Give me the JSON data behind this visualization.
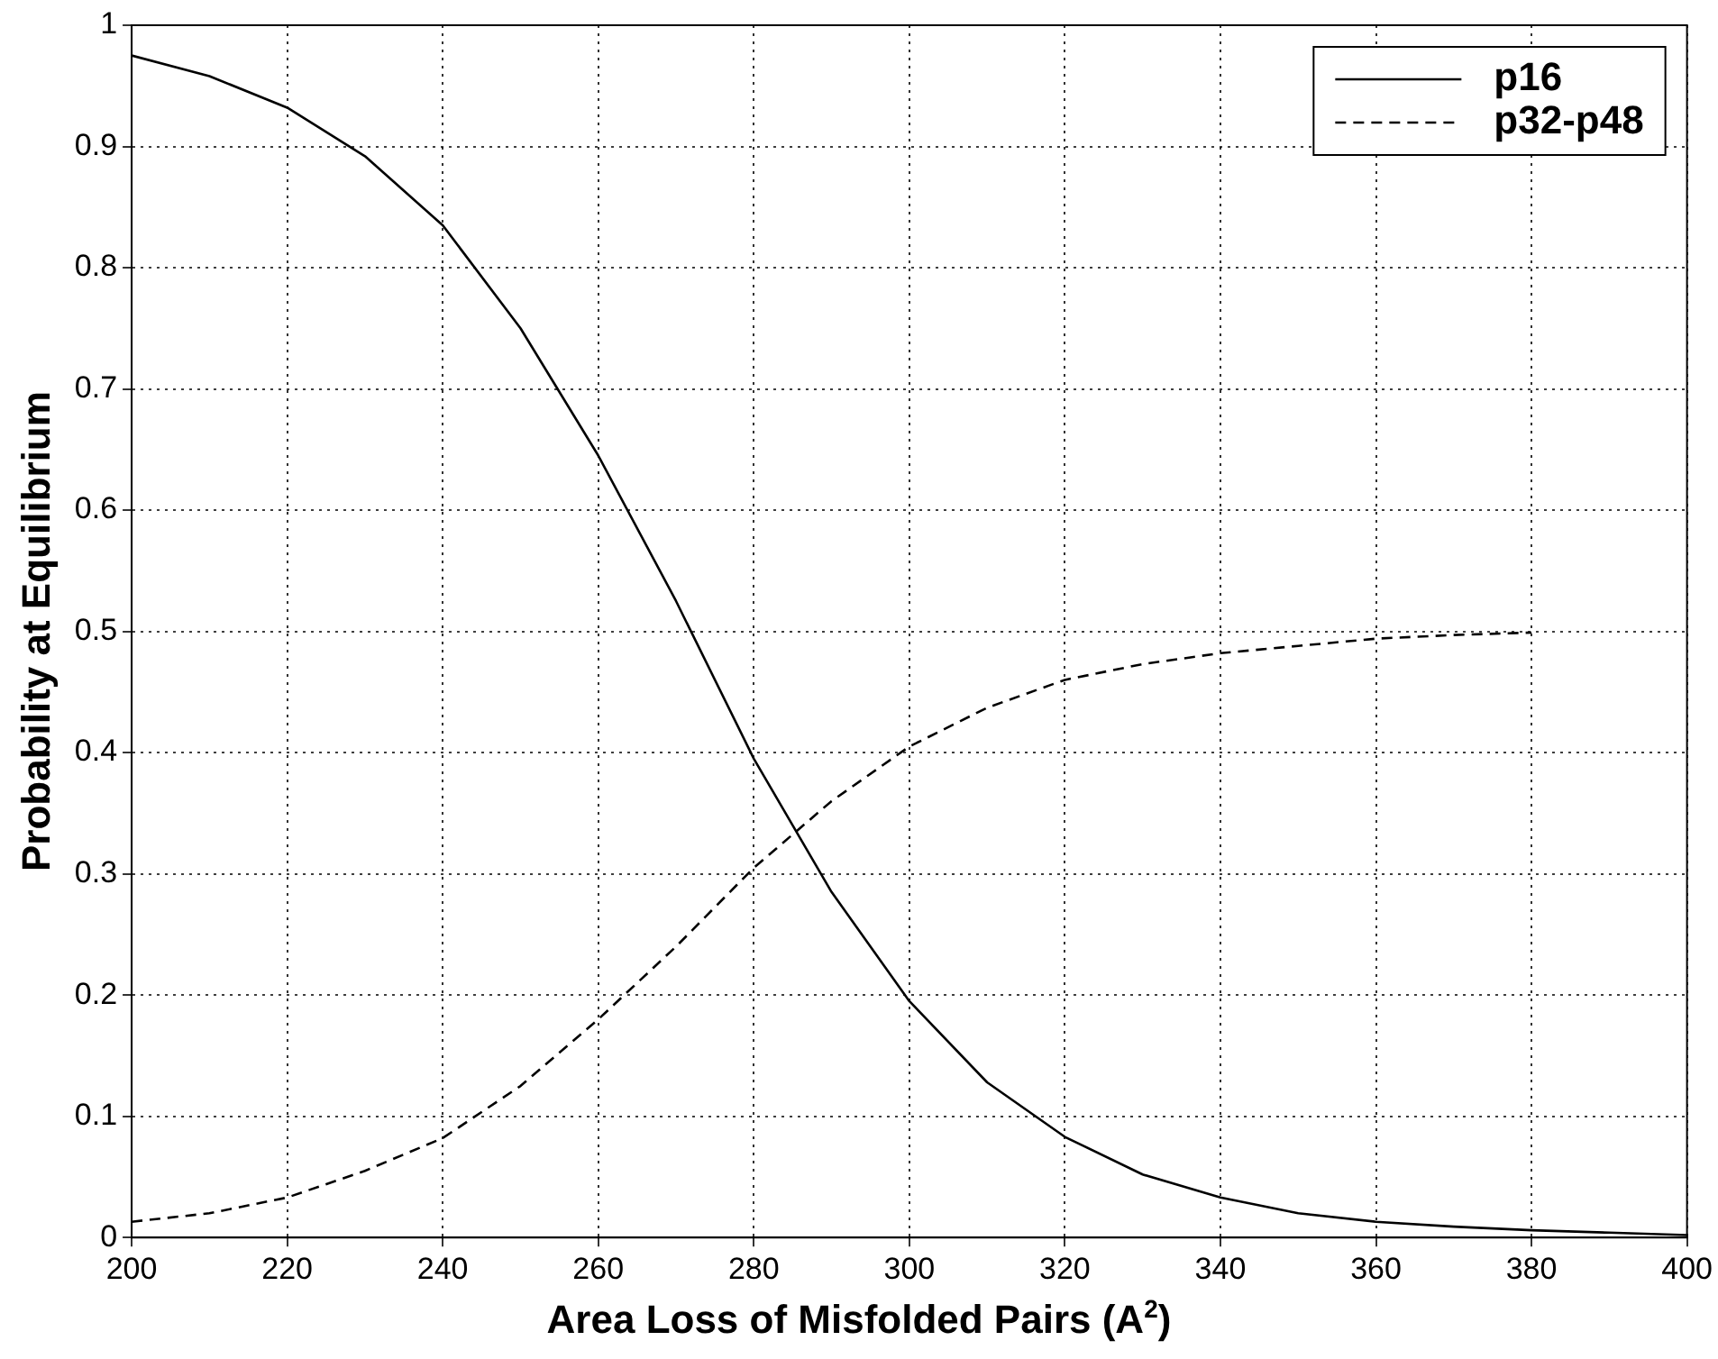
{
  "chart_data": {
    "type": "line",
    "xlabel": "Area Loss of Misfolded Pairs (A$^{2}$)",
    "ylabel": "Probability at Equilibrium",
    "x": [
      200,
      210,
      220,
      230,
      240,
      250,
      260,
      270,
      280,
      290,
      300,
      310,
      320,
      330,
      340,
      350,
      360,
      370,
      380,
      390,
      400
    ],
    "series": [
      {
        "name": "p16",
        "color": "#000000",
        "line_style": "solid",
        "values": [
          0.975,
          0.958,
          0.932,
          0.892,
          0.835,
          0.75,
          0.645,
          0.525,
          0.395,
          0.285,
          0.195,
          0.128,
          0.083,
          0.052,
          0.033,
          0.02,
          0.013,
          0.009,
          0.006,
          0.004,
          0.002
        ]
      },
      {
        "name": "p32-p48",
        "color": "#000000",
        "line_style": "dashed",
        "values": [
          0.013,
          0.02,
          0.033,
          0.055,
          0.082,
          0.125,
          0.18,
          0.24,
          0.305,
          0.36,
          0.405,
          0.437,
          0.46,
          0.473,
          0.482,
          0.488,
          0.494,
          0.497,
          0.499,
          null,
          null
        ]
      }
    ],
    "xlim": [
      200,
      400
    ],
    "xticks": [
      200,
      220,
      240,
      260,
      280,
      300,
      320,
      340,
      360,
      380,
      400
    ],
    "ylim": [
      0,
      1
    ],
    "yticks": [
      0,
      0.1,
      0.2,
      0.3,
      0.4,
      0.5,
      0.6,
      0.7,
      0.8,
      0.9,
      1
    ],
    "grid": true,
    "legend": "top right",
    "marker": "none"
  }
}
